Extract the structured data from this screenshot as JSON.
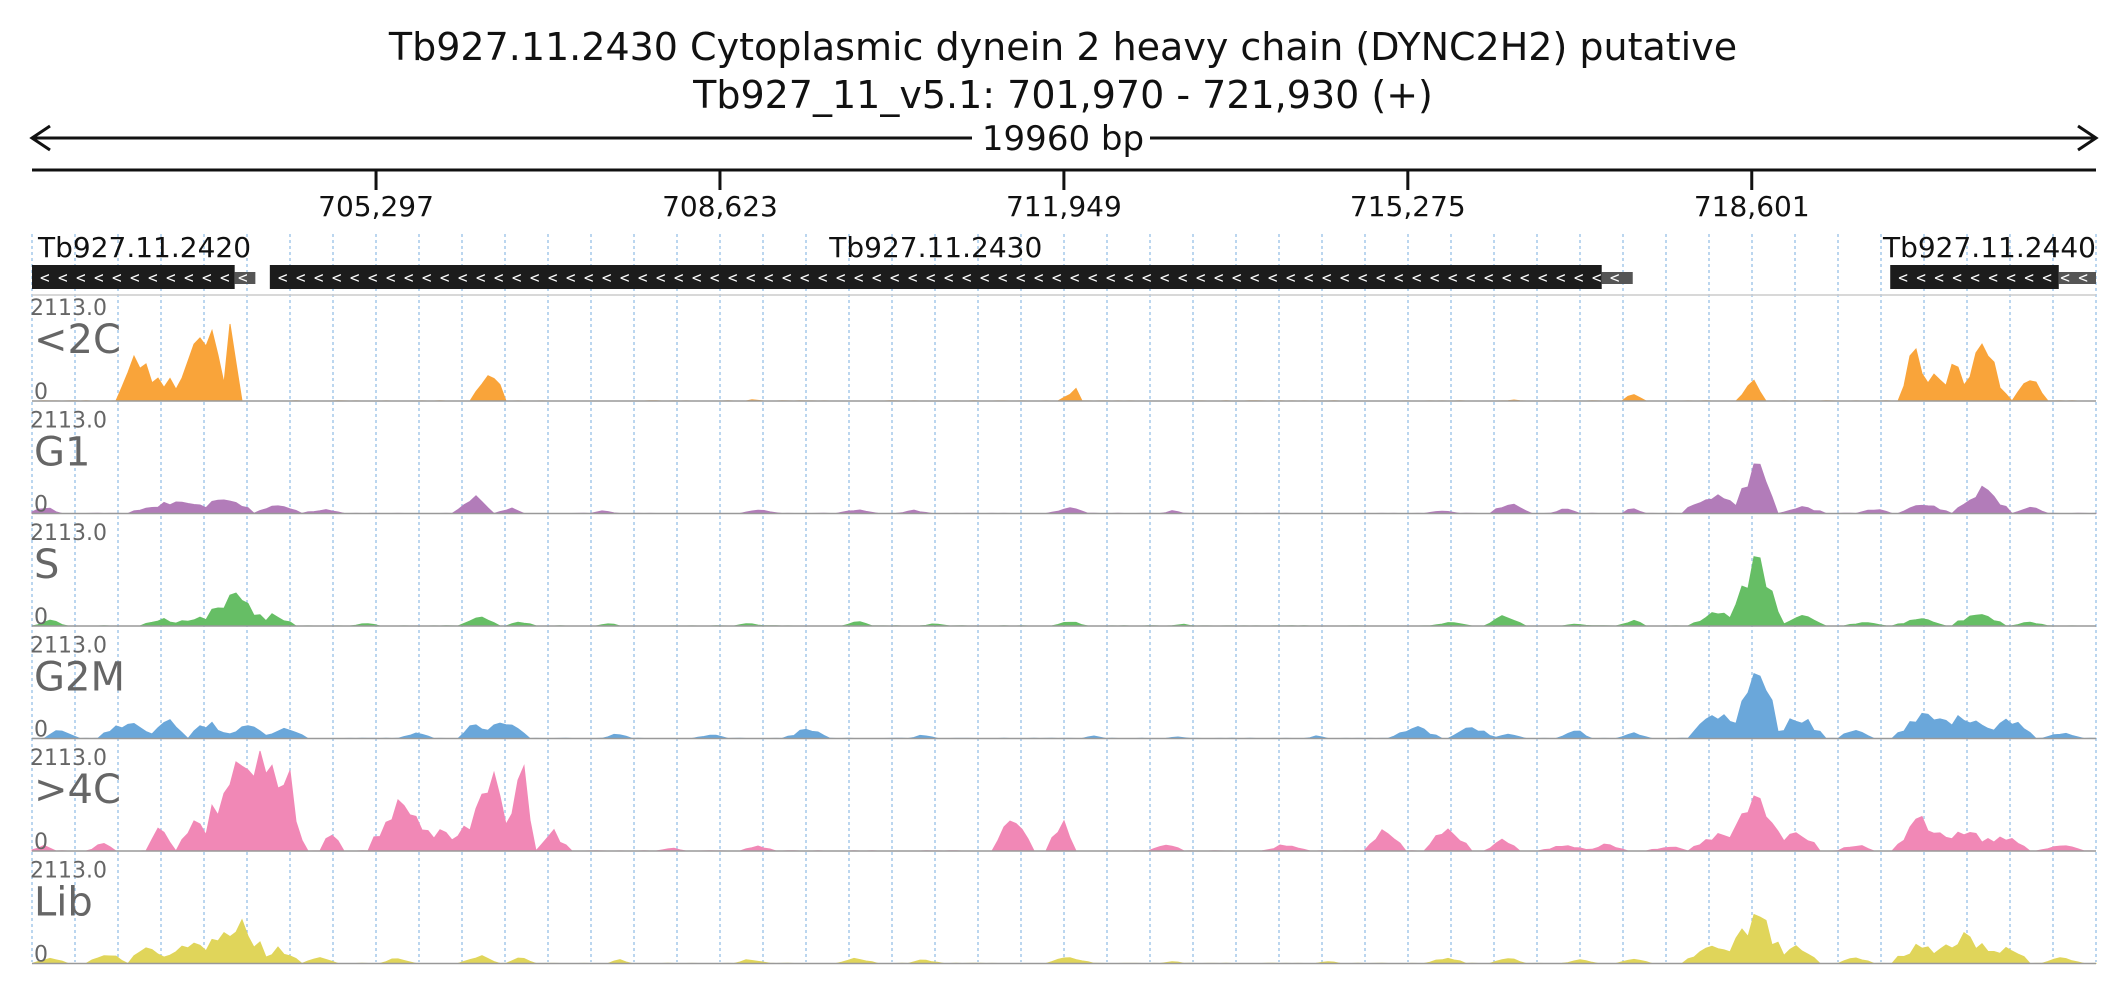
{
  "title": {
    "line1": "Tb927.11.2430  Cytoplasmic dynein 2 heavy chain (DYNC2H2)  putative",
    "line2": "Tb927_11_v5.1: 701,970 - 721,930 (+)"
  },
  "span_label": "19960 bp",
  "chart_data": {
    "type": "area",
    "xlim": [
      701970,
      721930
    ],
    "x_ticks": [
      705297,
      708623,
      711949,
      715275,
      718601
    ],
    "x_tick_labels": [
      "705,297",
      "708,623",
      "711,949",
      "715,275",
      "718,601"
    ],
    "genes": [
      {
        "name": "Tb927.11.2420",
        "start": 701970,
        "end": 703930,
        "utr_end": 704130,
        "strand": "-"
      },
      {
        "name": "Tb927.11.2430",
        "start": 704270,
        "end": 717150,
        "utr_end": 717450,
        "strand": "-"
      },
      {
        "name": "Tb927.11.2440",
        "start": 719940,
        "end": 721570,
        "utr_end": 721930,
        "strand": "-"
      }
    ],
    "track_max": "2113.0",
    "track_min": "0",
    "tracks": [
      {
        "name": "<2C",
        "color": "#F9A43A",
        "peaks": [
          [
            702970,
            150,
            970
          ],
          [
            703150,
            120,
            530
          ],
          [
            703310,
            80,
            560
          ],
          [
            703580,
            210,
            1260
          ],
          [
            703760,
            110,
            960
          ],
          [
            703900,
            50,
            2113
          ],
          [
            706320,
            110,
            420
          ],
          [
            706450,
            90,
            520
          ],
          [
            708940,
            60,
            40
          ],
          [
            712000,
            80,
            140
          ],
          [
            712070,
            50,
            180
          ],
          [
            716300,
            60,
            20
          ],
          [
            717450,
            90,
            170
          ],
          [
            718600,
            110,
            540
          ],
          [
            720160,
            120,
            1040
          ],
          [
            720360,
            140,
            600
          ],
          [
            720580,
            110,
            850
          ],
          [
            720840,
            160,
            1280
          ],
          [
            721000,
            100,
            380
          ],
          [
            721280,
            140,
            520
          ]
        ]
      },
      {
        "name": "G1",
        "color": "#B27CB9",
        "peaks": [
          [
            702100,
            150,
            110
          ],
          [
            703130,
            200,
            160
          ],
          [
            703430,
            220,
            310
          ],
          [
            703840,
            250,
            360
          ],
          [
            704370,
            200,
            180
          ],
          [
            704800,
            180,
            90
          ],
          [
            706250,
            180,
            330
          ],
          [
            706600,
            120,
            110
          ],
          [
            707500,
            100,
            60
          ],
          [
            709000,
            180,
            60
          ],
          [
            709950,
            150,
            80
          ],
          [
            710500,
            120,
            60
          ],
          [
            712000,
            180,
            110
          ],
          [
            713000,
            80,
            60
          ],
          [
            715600,
            160,
            60
          ],
          [
            716250,
            180,
            210
          ],
          [
            716800,
            140,
            90
          ],
          [
            717450,
            100,
            110
          ],
          [
            718250,
            280,
            380
          ],
          [
            718650,
            200,
            1080
          ],
          [
            719100,
            200,
            130
          ],
          [
            719800,
            150,
            90
          ],
          [
            720260,
            240,
            180
          ],
          [
            720820,
            260,
            480
          ],
          [
            721300,
            160,
            110
          ]
        ]
      },
      {
        "name": "S",
        "color": "#66BE65",
        "peaks": [
          [
            702150,
            140,
            110
          ],
          [
            703230,
            200,
            140
          ],
          [
            703600,
            200,
            190
          ],
          [
            703950,
            260,
            640
          ],
          [
            704330,
            140,
            260
          ],
          [
            705200,
            120,
            60
          ],
          [
            706300,
            180,
            170
          ],
          [
            706700,
            140,
            80
          ],
          [
            707550,
            100,
            60
          ],
          [
            708900,
            120,
            50
          ],
          [
            709950,
            140,
            90
          ],
          [
            710700,
            100,
            50
          ],
          [
            712000,
            140,
            110
          ],
          [
            713100,
            80,
            40
          ],
          [
            715700,
            180,
            80
          ],
          [
            716200,
            180,
            190
          ],
          [
            716900,
            120,
            50
          ],
          [
            717450,
            120,
            120
          ],
          [
            718300,
            280,
            290
          ],
          [
            718650,
            220,
            1330
          ],
          [
            719100,
            200,
            190
          ],
          [
            719700,
            160,
            90
          ],
          [
            720230,
            220,
            150
          ],
          [
            720800,
            250,
            260
          ],
          [
            721300,
            160,
            80
          ]
        ]
      },
      {
        "name": "G2M",
        "color": "#6AA7DA",
        "peaks": [
          [
            702250,
            140,
            200
          ],
          [
            702890,
            230,
            330
          ],
          [
            703290,
            180,
            340
          ],
          [
            703680,
            200,
            310
          ],
          [
            704050,
            200,
            280
          ],
          [
            704430,
            180,
            210
          ],
          [
            705700,
            150,
            110
          ],
          [
            706270,
            170,
            300
          ],
          [
            706580,
            200,
            380
          ],
          [
            707640,
            120,
            90
          ],
          [
            708550,
            150,
            70
          ],
          [
            709470,
            190,
            190
          ],
          [
            710600,
            120,
            70
          ],
          [
            712230,
            100,
            50
          ],
          [
            713050,
            80,
            40
          ],
          [
            714400,
            100,
            50
          ],
          [
            715350,
            220,
            230
          ],
          [
            715900,
            220,
            210
          ],
          [
            716250,
            140,
            80
          ],
          [
            716900,
            140,
            150
          ],
          [
            717450,
            150,
            110
          ],
          [
            718280,
            280,
            560
          ],
          [
            718650,
            200,
            1860
          ],
          [
            719050,
            220,
            460
          ],
          [
            719600,
            160,
            170
          ],
          [
            720250,
            240,
            480
          ],
          [
            720650,
            260,
            510
          ],
          [
            721100,
            240,
            410
          ],
          [
            721600,
            180,
            110
          ]
        ]
      },
      {
        "name": ">4C",
        "color": "#F188B6",
        "peaks": [
          [
            702080,
            120,
            100
          ],
          [
            702660,
            120,
            160
          ],
          [
            703200,
            120,
            480
          ],
          [
            703580,
            180,
            650
          ],
          [
            703950,
            260,
            1810
          ],
          [
            704250,
            220,
            1610
          ],
          [
            704450,
            140,
            1000
          ],
          [
            704860,
            100,
            410
          ],
          [
            705550,
            280,
            1000
          ],
          [
            705950,
            220,
            420
          ],
          [
            706200,
            140,
            560
          ],
          [
            706400,
            190,
            1500
          ],
          [
            706700,
            140,
            1720
          ],
          [
            707000,
            150,
            390
          ],
          [
            708160,
            100,
            80
          ],
          [
            708990,
            150,
            110
          ],
          [
            711450,
            180,
            790
          ],
          [
            711920,
            140,
            590
          ],
          [
            712950,
            160,
            120
          ],
          [
            714100,
            180,
            130
          ],
          [
            715050,
            180,
            430
          ],
          [
            715650,
            200,
            480
          ],
          [
            716200,
            140,
            250
          ],
          [
            716800,
            220,
            110
          ],
          [
            717200,
            160,
            130
          ],
          [
            717800,
            180,
            90
          ],
          [
            718300,
            280,
            350
          ],
          [
            718650,
            220,
            1340
          ],
          [
            719050,
            200,
            400
          ],
          [
            719600,
            160,
            130
          ],
          [
            720240,
            240,
            620
          ],
          [
            720650,
            240,
            480
          ],
          [
            721050,
            220,
            280
          ],
          [
            721600,
            200,
            110
          ]
        ]
      },
      {
        "name": "Lib",
        "color": "#E0D55A",
        "peaks": [
          [
            702150,
            160,
            120
          ],
          [
            702700,
            180,
            210
          ],
          [
            703100,
            200,
            320
          ],
          [
            703500,
            240,
            460
          ],
          [
            703950,
            280,
            860
          ],
          [
            704350,
            200,
            300
          ],
          [
            704750,
            140,
            130
          ],
          [
            705500,
            160,
            110
          ],
          [
            706300,
            160,
            160
          ],
          [
            706700,
            140,
            110
          ],
          [
            707650,
            100,
            70
          ],
          [
            708920,
            150,
            90
          ],
          [
            709950,
            150,
            110
          ],
          [
            710600,
            140,
            80
          ],
          [
            712000,
            200,
            120
          ],
          [
            713000,
            100,
            50
          ],
          [
            714500,
            100,
            50
          ],
          [
            715650,
            180,
            110
          ],
          [
            716250,
            160,
            110
          ],
          [
            716950,
            140,
            70
          ],
          [
            717450,
            140,
            110
          ],
          [
            718250,
            280,
            350
          ],
          [
            718650,
            220,
            1040
          ],
          [
            719050,
            200,
            330
          ],
          [
            719600,
            160,
            120
          ],
          [
            720250,
            240,
            430
          ],
          [
            720650,
            260,
            550
          ],
          [
            721050,
            240,
            310
          ],
          [
            721600,
            180,
            110
          ]
        ]
      }
    ]
  }
}
